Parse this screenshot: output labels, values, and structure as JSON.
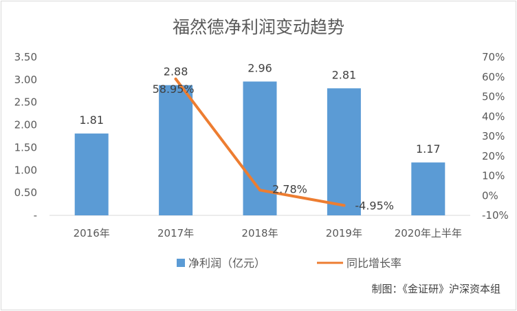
{
  "chart_data": {
    "type": "bar",
    "title": "福然德净利润变动趋势",
    "categories": [
      "2016年",
      "2017年",
      "2018年",
      "2019年",
      "2020年上半年"
    ],
    "series": [
      {
        "name": "净利润（亿元）",
        "type": "bar",
        "axis": "left",
        "color": "#5b9bd5",
        "values": [
          1.81,
          2.88,
          2.96,
          2.81,
          1.17
        ],
        "labels": [
          "1.81",
          "2.88",
          "2.96",
          "2.81",
          "1.17"
        ]
      },
      {
        "name": "同比增长率",
        "type": "line",
        "axis": "right",
        "color": "#ed7d31",
        "values": [
          null,
          58.95,
          2.78,
          -4.95,
          null
        ],
        "labels": [
          "",
          "58.95%",
          "2.78%",
          "-4.95%",
          ""
        ]
      }
    ],
    "y_left": {
      "range": [
        0,
        3.5
      ],
      "ticks": [
        0,
        0.5,
        1.0,
        1.5,
        2.0,
        2.5,
        3.0,
        3.5
      ],
      "tick_labels": [
        "-",
        "0.50",
        "1.00",
        "1.50",
        "2.00",
        "2.50",
        "3.00",
        "3.50"
      ]
    },
    "y_right": {
      "range": [
        -10,
        70
      ],
      "ticks": [
        -10,
        0,
        10,
        20,
        30,
        40,
        50,
        60,
        70
      ],
      "tick_labels": [
        "-10%",
        "0%",
        "10%",
        "20%",
        "30%",
        "40%",
        "50%",
        "60%",
        "70%"
      ]
    },
    "grid": false,
    "legend_position": "bottom"
  },
  "credit": "制图：《金证研》沪深资本组"
}
